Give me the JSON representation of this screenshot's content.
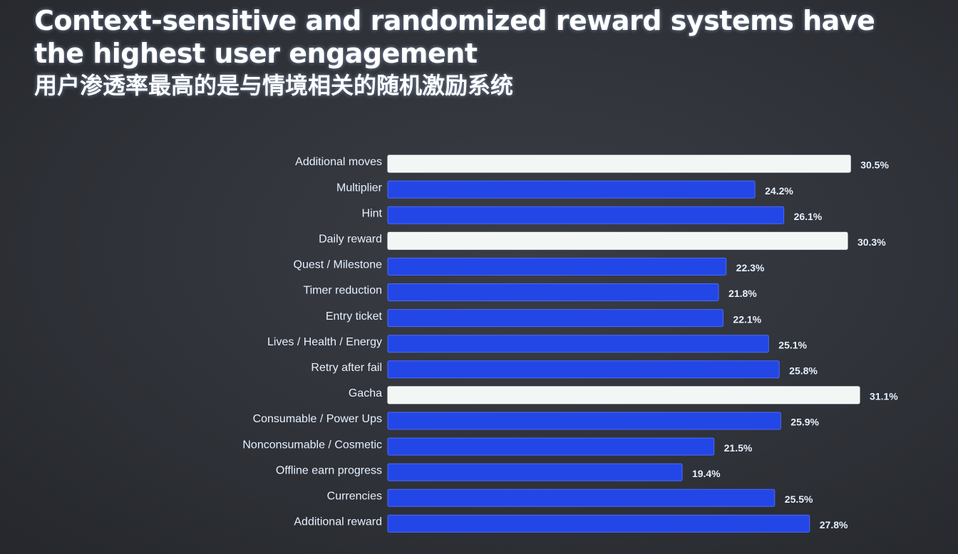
{
  "slide": {
    "title_en": "Context-sensitive and randomized reward systems have the highest user engagement",
    "title_zh": "用户渗透率最高的是与情境相关的随机激励系统"
  },
  "colors": {
    "background": "#2f3238",
    "bar_default": "#2346e6",
    "bar_highlight": "#f2f6f5",
    "text": "#e6f0ff"
  },
  "chart_data": {
    "type": "bar",
    "orientation": "horizontal",
    "title": "Context-sensitive and randomized reward systems have the highest user engagement",
    "value_suffix": "%",
    "categories": [
      "Additional moves",
      "Multiplier",
      "Hint",
      "Daily reward",
      "Quest / Milestone",
      "Timer reduction",
      "Entry ticket",
      "Lives / Health / Energy",
      "Retry after fail",
      "Gacha",
      "Consumable / Power Ups",
      "Nonconsumable / Cosmetic",
      "Offline earn progress",
      "Currencies",
      "Additional reward"
    ],
    "values": [
      30.5,
      24.2,
      26.1,
      30.3,
      22.3,
      21.8,
      22.1,
      25.1,
      25.8,
      31.1,
      25.9,
      21.5,
      19.4,
      25.5,
      27.8
    ],
    "value_labels": [
      "30.5%",
      "24.2%",
      "26.1%",
      "30.3%",
      "22.3%",
      "21.8%",
      "22.1%",
      "25.1%",
      "25.8%",
      "31.1%",
      "25.9%",
      "21.5%",
      "19.4%",
      "25.5%",
      "27.8%"
    ],
    "highlighted": [
      "Additional moves",
      "Daily reward",
      "Gacha"
    ],
    "xlim": [
      0,
      31.1
    ],
    "grid": false,
    "legend": "none"
  }
}
